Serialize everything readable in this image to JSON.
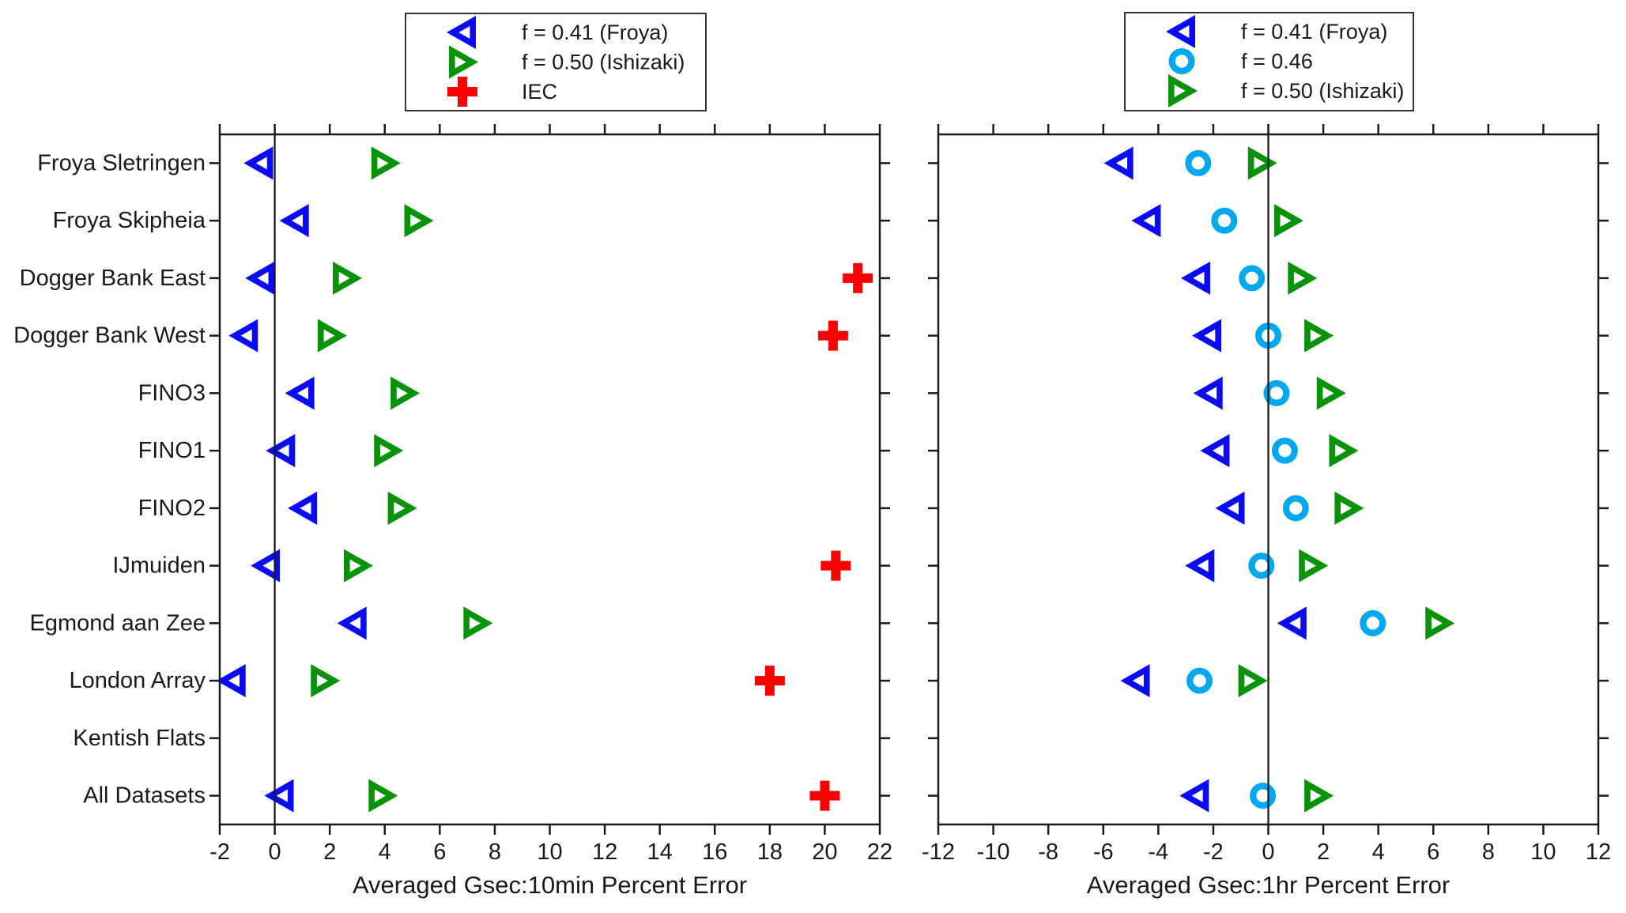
{
  "figure": {
    "background": "#ffffff",
    "text_color": "#1a1a1a",
    "axis_color": "#1a1a1a"
  },
  "chart_data": [
    {
      "type": "scatter",
      "panel": "left",
      "xlabel": "Averaged Gsec:10min Percent Error",
      "xlim": [
        -2,
        22
      ],
      "xticks": [
        -2,
        0,
        2,
        4,
        6,
        8,
        10,
        12,
        14,
        16,
        18,
        20,
        22
      ],
      "grid": false,
      "zero_line": true,
      "legend_position": "above-plot",
      "categories": [
        "Froya Sletringen",
        "Froya Skipheia",
        "Dogger Bank East",
        "Dogger Bank West",
        "FINO3",
        "FINO1",
        "FINO2",
        "IJmuiden",
        "Egmond aan Zee",
        "London Array",
        "Kentish Flats",
        "All Datasets"
      ],
      "series": [
        {
          "name": "f = 0.41 (Froya)",
          "marker": "triangle-left",
          "color": "#0A0AF5",
          "values": [
            -0.55,
            0.75,
            -0.5,
            -1.1,
            0.95,
            0.25,
            1.05,
            -0.3,
            2.85,
            -1.55,
            null,
            0.2
          ]
        },
        {
          "name": "f = 0.50 (Ishizaki)",
          "marker": "triangle-right",
          "color": "#079307",
          "values": [
            4.0,
            5.2,
            2.6,
            2.05,
            4.7,
            4.1,
            4.6,
            3.0,
            7.35,
            1.8,
            null,
            3.9
          ]
        },
        {
          "name": "IEC",
          "marker": "plus",
          "color": "#FA0000",
          "values": [
            null,
            null,
            21.2,
            20.3,
            null,
            null,
            null,
            20.4,
            null,
            18.0,
            null,
            20.0
          ]
        }
      ]
    },
    {
      "type": "scatter",
      "panel": "right",
      "xlabel": "Averaged Gsec:1hr Percent Error",
      "xlim": [
        -12,
        12
      ],
      "xticks": [
        -12,
        -10,
        -8,
        -6,
        -4,
        -2,
        0,
        2,
        4,
        6,
        8,
        10,
        12
      ],
      "grid": false,
      "zero_line": true,
      "legend_position": "above-plot",
      "categories": [
        "Froya Sletringen",
        "Froya Skipheia",
        "Dogger Bank East",
        "Dogger Bank West",
        "FINO3",
        "FINO1",
        "FINO2",
        "IJmuiden",
        "Egmond aan Zee",
        "London Array",
        "Kentish Flats",
        "All Datasets"
      ],
      "series": [
        {
          "name": "f = 0.41 (Froya)",
          "marker": "triangle-left",
          "color": "#0A0AF5",
          "values": [
            -5.4,
            -4.4,
            -2.6,
            -2.2,
            -2.15,
            -1.9,
            -1.35,
            -2.45,
            0.9,
            -4.8,
            null,
            -2.65
          ]
        },
        {
          "name": "f = 0.46",
          "marker": "circle",
          "color": "#00A8F0",
          "values": [
            -2.55,
            -1.6,
            -0.6,
            0.0,
            0.3,
            0.6,
            1.0,
            -0.25,
            3.8,
            -2.5,
            null,
            -0.2
          ]
        },
        {
          "name": "f = 0.50 (Ishizaki)",
          "marker": "triangle-right",
          "color": "#079307",
          "values": [
            -0.25,
            0.7,
            1.2,
            1.8,
            2.25,
            2.7,
            2.9,
            1.6,
            6.2,
            -0.6,
            null,
            1.8
          ]
        }
      ]
    }
  ]
}
